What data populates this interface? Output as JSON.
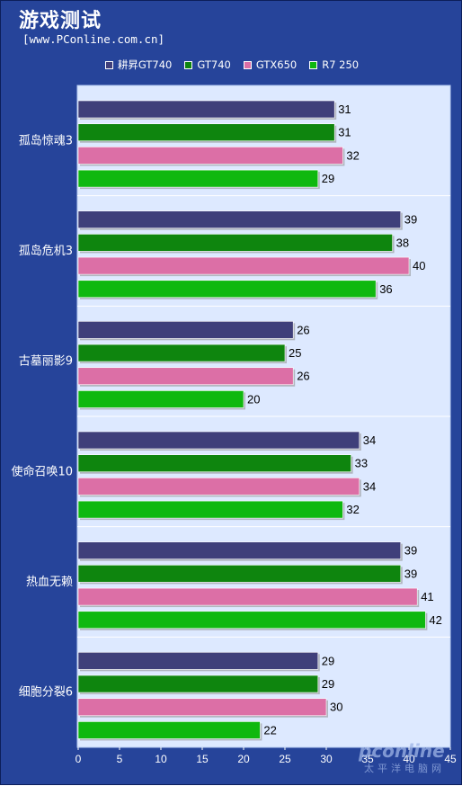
{
  "header": {
    "title": "游戏测试",
    "subtitle": "[www.PConline.com.cn]"
  },
  "watermark": {
    "brand": "pconline",
    "tagline": "太平洋电脑网"
  },
  "colors": {
    "background": "#26449a",
    "plot_area": "#dde9ff",
    "plot_border": "#b8cdf2",
    "separator": "#ffffff"
  },
  "chart_data": {
    "type": "bar",
    "orientation": "horizontal",
    "categories": [
      "孤岛惊魂3",
      "孤岛危机3",
      "古墓丽影9",
      "使命召唤10",
      "热血无赖",
      "细胞分裂6"
    ],
    "series": [
      {
        "name": "耕昇GT740",
        "color": "#3f3f7a",
        "values": [
          31,
          39,
          26,
          34,
          39,
          29
        ]
      },
      {
        "name": "GT740",
        "color": "#0e850e",
        "values": [
          31,
          38,
          25,
          33,
          39,
          29
        ]
      },
      {
        "name": "GTX650",
        "color": "#dc6fa6",
        "values": [
          32,
          40,
          26,
          34,
          41,
          30
        ]
      },
      {
        "name": "R7 250",
        "color": "#0fb80f",
        "values": [
          29,
          36,
          20,
          32,
          42,
          22
        ]
      }
    ],
    "xlim": [
      0,
      45
    ],
    "xticks": [
      0,
      5,
      10,
      15,
      20,
      25,
      30,
      35,
      40,
      45
    ],
    "legend_position": "top",
    "data_labels": true,
    "grid": false
  }
}
